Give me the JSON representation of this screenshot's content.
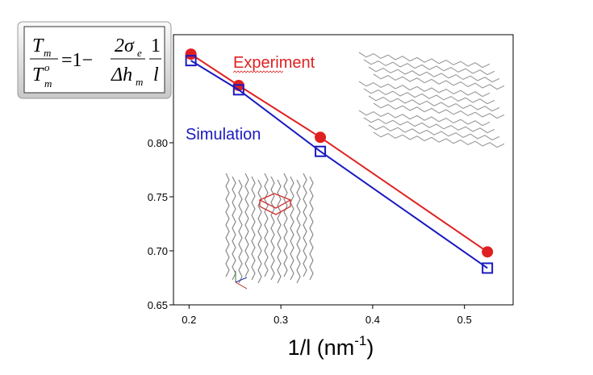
{
  "chart_data": {
    "type": "line",
    "x_label": {
      "text": "1/l (nm",
      "sup": "-1",
      "end": ")"
    },
    "xlim": [
      0.183,
      0.553
    ],
    "xticks": [
      0.2,
      0.3,
      0.4,
      0.5
    ],
    "ylim": [
      0.65,
      0.9
    ],
    "yticks": [
      {
        "value": 0.65,
        "label": "0.65"
      },
      {
        "value": 0.7,
        "label": "0.70"
      },
      {
        "value": 0.75,
        "label": "0.75"
      },
      {
        "value": 0.8,
        "label": "0.80"
      }
    ],
    "series": [
      {
        "name": "Experiment",
        "color": "#e02020",
        "marker": "circle",
        "x": [
          0.202,
          0.254,
          0.343,
          0.525
        ],
        "values": [
          0.882,
          0.853,
          0.805,
          0.699
        ]
      },
      {
        "name": "Simulation",
        "color": "#1a1ac0",
        "marker": "square",
        "x": [
          0.202,
          0.254,
          0.343,
          0.525
        ],
        "values": [
          0.876,
          0.849,
          0.792,
          0.684
        ]
      }
    ]
  },
  "formula": {
    "t1": "T",
    "t1_sub": "m",
    "t2": "T",
    "t2_sup": "o",
    "t2_sub": "m",
    "eq": "=1−",
    "n": "2σ",
    "n_sub": "e",
    "d": "Δh",
    "d_sub": "m",
    "one": "1",
    "l": "l"
  }
}
